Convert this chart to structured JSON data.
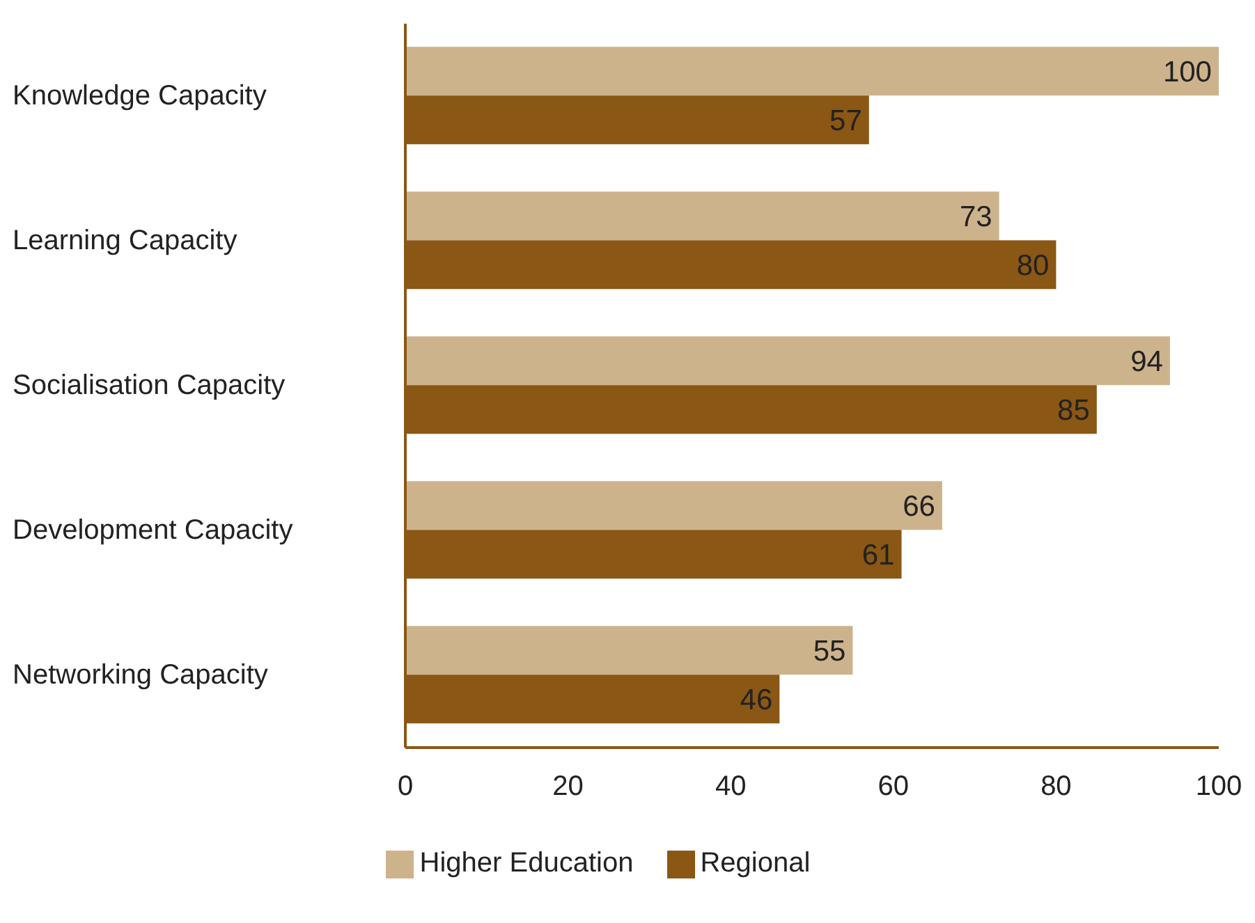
{
  "chart_data": {
    "type": "bar",
    "orientation": "horizontal",
    "categories": [
      "Knowledge Capacity",
      "Learning Capacity",
      "Socialisation Capacity",
      "Development Capacity",
      "Networking Capacity"
    ],
    "series": [
      {
        "name": "Higher Education",
        "color": "#cdb38c",
        "values": [
          100,
          73,
          94,
          66,
          55
        ]
      },
      {
        "name": "Regional",
        "color": "#8a5714",
        "values": [
          57,
          80,
          85,
          61,
          46
        ]
      }
    ],
    "xlim": [
      0,
      100
    ],
    "xticks": [
      0,
      20,
      40,
      60,
      80,
      100
    ],
    "data_labels": true,
    "legend": "bottom"
  }
}
